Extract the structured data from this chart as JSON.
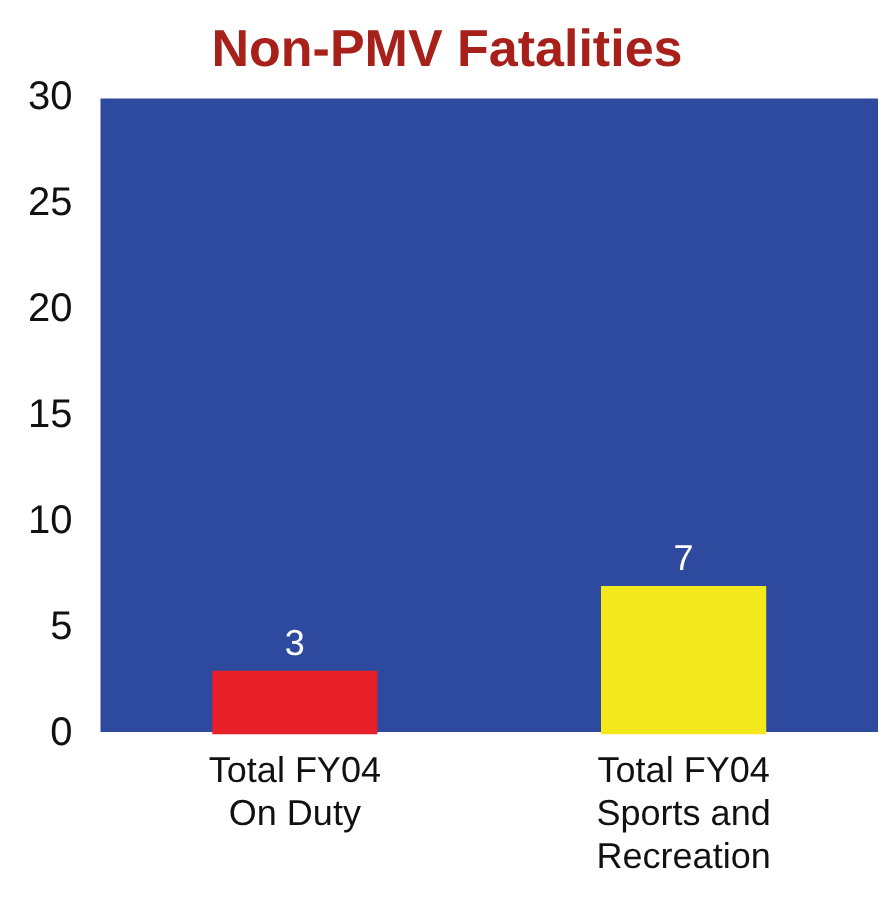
{
  "chart_data": {
    "type": "bar",
    "title": "Non-PMV Fatalities",
    "categories": [
      "Total FY04 On Duty",
      "Total FY04 Sports and Recreation"
    ],
    "values": [
      3,
      7
    ],
    "colors": [
      "#e8202a",
      "#f2e81c"
    ],
    "ylim": [
      0,
      30
    ],
    "yticks": [
      0,
      5,
      10,
      15,
      20,
      25,
      30
    ],
    "grid": false,
    "data_labels": true
  }
}
